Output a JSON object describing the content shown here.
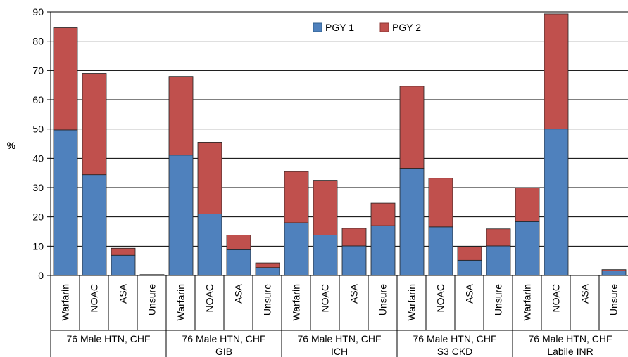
{
  "chart_data": {
    "type": "bar",
    "stacked": true,
    "ylabel": "%",
    "ylim": [
      0,
      90
    ],
    "yticks": [
      0,
      10,
      20,
      30,
      40,
      50,
      60,
      70,
      80,
      90
    ],
    "grid": true,
    "legend_position": "top-center",
    "groups": [
      {
        "lines": [
          "76 Male HTN, CHF"
        ],
        "categories": [
          "Warfarin",
          "NOAC",
          "ASA",
          "Unsure"
        ]
      },
      {
        "lines": [
          "76 Male HTN, CHF",
          "GIB"
        ],
        "categories": [
          "Warfarin",
          "NOAC",
          "ASA",
          "Unsure"
        ]
      },
      {
        "lines": [
          "76 Male HTN, CHF",
          "ICH"
        ],
        "categories": [
          "Warfarin",
          "NOAC",
          "ASA",
          "Unsure"
        ]
      },
      {
        "lines": [
          "76 Male HTN, CHF",
          "S3 CKD"
        ],
        "categories": [
          "Warfarin",
          "NOAC",
          "ASA",
          "Unsure"
        ]
      },
      {
        "lines": [
          "76 Male HTN, CHF",
          "Labile INR"
        ],
        "categories": [
          "Warfarin",
          "NOAC",
          "ASA",
          "Unsure"
        ]
      }
    ],
    "series": [
      {
        "name": "PGY 1",
        "color": "#4f81bd",
        "values": [
          49.7,
          34.4,
          6.9,
          0.2,
          41.1,
          21.0,
          8.8,
          2.7,
          18.0,
          13.8,
          10.1,
          17.0,
          36.6,
          16.6,
          5.2,
          10.1,
          18.4,
          50.0,
          0.0,
          1.6
        ]
      },
      {
        "name": "PGY 2",
        "color": "#c0504d",
        "values": [
          34.9,
          34.6,
          2.4,
          0.1,
          26.9,
          24.5,
          5.0,
          1.6,
          17.5,
          18.7,
          6.0,
          7.7,
          28.0,
          16.6,
          4.5,
          5.8,
          11.6,
          39.3,
          0.0,
          0.4
        ]
      }
    ]
  }
}
